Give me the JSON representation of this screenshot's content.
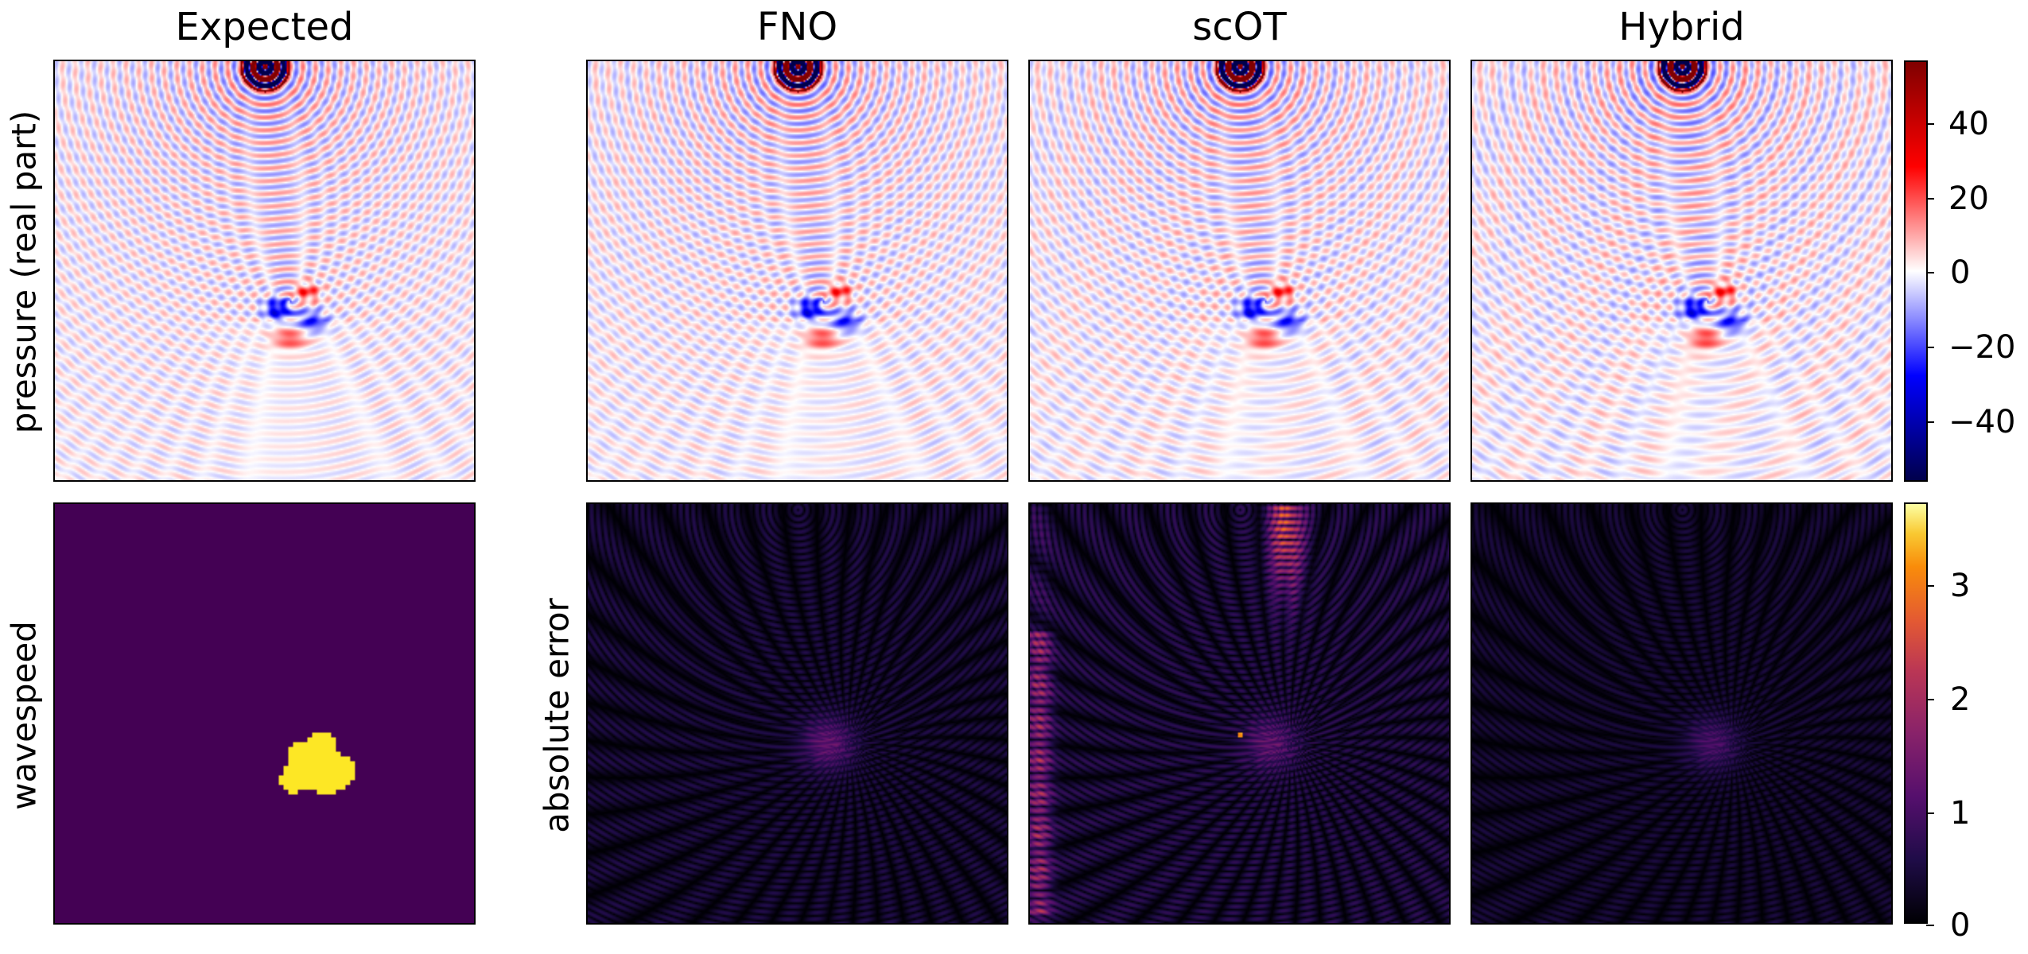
{
  "columns": [
    "Expected",
    "FNO",
    "scOT",
    "Hybrid"
  ],
  "row_labels": {
    "pressure": "pressure (real part)",
    "wavespeed": "wavespeed",
    "error": "absolute error"
  },
  "chart_data": [
    {
      "type": "heatmap",
      "title": "Expected",
      "ylabel": "pressure (real part)",
      "quantity": "pressure (real part)",
      "colormap": "seismic"
    },
    {
      "type": "heatmap",
      "title": "FNO",
      "quantity": "pressure (real part)",
      "colormap": "seismic"
    },
    {
      "type": "heatmap",
      "title": "scOT",
      "quantity": "pressure (real part)",
      "colormap": "seismic"
    },
    {
      "type": "heatmap",
      "title": "Hybrid",
      "quantity": "pressure (real part)",
      "colormap": "seismic"
    },
    {
      "type": "heatmap",
      "ylabel": "wavespeed",
      "quantity": "wavespeed",
      "colormap": "viridis"
    },
    {
      "type": "heatmap",
      "ylabel": "absolute error",
      "quantity": "absolute error",
      "model": "FNO",
      "colormap": "inferno"
    },
    {
      "type": "heatmap",
      "quantity": "absolute error",
      "model": "scOT",
      "colormap": "inferno"
    },
    {
      "type": "heatmap",
      "quantity": "absolute error",
      "model": "Hybrid",
      "colormap": "inferno"
    }
  ],
  "colorbars": {
    "pressure": {
      "colormap": "seismic",
      "range": [
        -56,
        56
      ],
      "ticks": [
        40,
        20,
        0,
        -20,
        -40
      ],
      "tick_labels": [
        "40",
        "20",
        "0",
        "−20",
        "−40"
      ]
    },
    "error": {
      "colormap": "inferno",
      "range": [
        0,
        3.6
      ],
      "ticks": [
        3,
        2,
        1,
        0
      ],
      "tick_labels": [
        "3",
        "2",
        "1",
        "0"
      ]
    }
  },
  "colors": {
    "seismic_low": "#00004c",
    "seismic_mid": "#ffffff",
    "seismic_high": "#800000",
    "viridis_background": "#440154",
    "viridis_inclusion": "#fde725"
  }
}
